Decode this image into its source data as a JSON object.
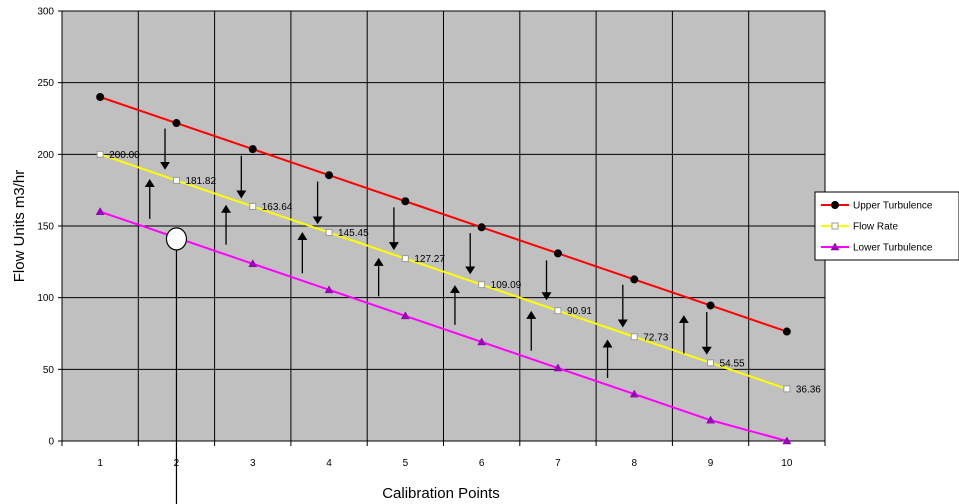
{
  "chart_data": {
    "type": "line",
    "xlabel": "Calibration Points",
    "ylabel": "Flow Units m3/hr",
    "categories": [
      "1",
      "2",
      "3",
      "4",
      "5",
      "6",
      "7",
      "8",
      "9",
      "10"
    ],
    "ylim": [
      0,
      300
    ],
    "yticks": [
      "0",
      "50",
      "100",
      "150",
      "200",
      "250",
      "300"
    ],
    "grid": true,
    "plot_background": "#c0c0c0",
    "legend_position": "right",
    "series": [
      {
        "name": "Upper Turbulence",
        "color": "#ff0000",
        "marker": "circle",
        "values": [
          240,
          221.82,
          203.64,
          185.45,
          167.27,
          149.09,
          130.91,
          112.73,
          94.55,
          76.36
        ]
      },
      {
        "name": "Flow Rate",
        "color": "#ffff00",
        "marker": "square",
        "values": [
          200,
          181.82,
          163.64,
          145.45,
          127.27,
          109.09,
          90.91,
          72.73,
          54.55,
          36.36
        ],
        "labels": [
          "200.00",
          "181.82",
          "163.64",
          "145.45",
          "127.27",
          "109.09",
          "90.91",
          "72.73",
          "54.55",
          "36.36"
        ]
      },
      {
        "name": "Lower Turbulence",
        "color": "#ff00ff",
        "marker": "triangle",
        "values": [
          160,
          141.82,
          123.64,
          105.45,
          87.27,
          69.09,
          50.91,
          32.73,
          14.55,
          0
        ]
      }
    ],
    "arrows": [
      {
        "x": 1.65,
        "y_from": 155,
        "y_to": 180,
        "direction": "up"
      },
      {
        "x": 1.85,
        "y_from": 218,
        "y_to": 192,
        "direction": "down"
      },
      {
        "x": 2.65,
        "y_from": 137,
        "y_to": 162,
        "direction": "up"
      },
      {
        "x": 2.85,
        "y_from": 199,
        "y_to": 172,
        "direction": "down"
      },
      {
        "x": 3.65,
        "y_from": 117,
        "y_to": 143,
        "direction": "up"
      },
      {
        "x": 3.85,
        "y_from": 181,
        "y_to": 154,
        "direction": "down"
      },
      {
        "x": 4.65,
        "y_from": 101,
        "y_to": 125,
        "direction": "up"
      },
      {
        "x": 4.85,
        "y_from": 163,
        "y_to": 136,
        "direction": "down"
      },
      {
        "x": 5.65,
        "y_from": 81,
        "y_to": 106,
        "direction": "up"
      },
      {
        "x": 5.85,
        "y_from": 145,
        "y_to": 119,
        "direction": "down"
      },
      {
        "x": 6.65,
        "y_from": 63,
        "y_to": 88,
        "direction": "up"
      },
      {
        "x": 6.85,
        "y_from": 126,
        "y_to": 101,
        "direction": "down"
      },
      {
        "x": 7.65,
        "y_from": 44,
        "y_to": 68,
        "direction": "up"
      },
      {
        "x": 7.85,
        "y_from": 109,
        "y_to": 82,
        "direction": "down"
      },
      {
        "x": 8.65,
        "y_from": 61,
        "y_to": 85,
        "direction": "up"
      },
      {
        "x": 8.95,
        "y_from": 90,
        "y_to": 63,
        "direction": "down"
      }
    ],
    "marker_callout": {
      "x": 2,
      "y": 141
    }
  }
}
